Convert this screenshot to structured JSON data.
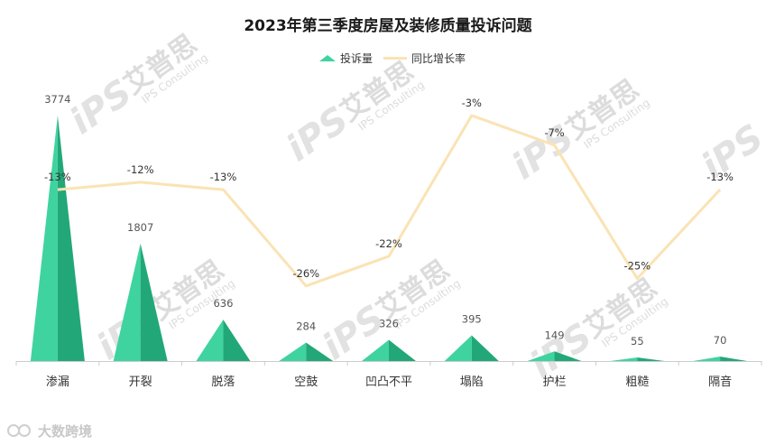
{
  "watermark": {
    "brand_cn": "艾普思",
    "brand_en": "IPS Consulting",
    "mark": "iPS"
  },
  "source_mark": "大数跨境",
  "colors": {
    "bar_light": "#3fd3a0",
    "bar_dark": "#22a878",
    "line": "#fae3b4",
    "axis": "#cccccc"
  },
  "chart_data": {
    "type": "bar",
    "title": "2023年第三季度房屋及装修质量投诉问题",
    "legend_position": "top-center",
    "categories": [
      "渗漏",
      "开裂",
      "脱落",
      "空鼓",
      "凹凸不平",
      "塌陷",
      "护栏",
      "粗糙",
      "隔音"
    ],
    "series": [
      {
        "name": "投诉量",
        "type": "bar",
        "axis": "left",
        "values": [
          3774,
          1807,
          636,
          284,
          326,
          395,
          149,
          55,
          70
        ],
        "labels": [
          "3774",
          "1807",
          "636",
          "284",
          "326",
          "395",
          "149",
          "55",
          "70"
        ]
      },
      {
        "name": "同比增长率",
        "type": "line",
        "axis": "right",
        "values": [
          -13,
          -12,
          -13,
          -26,
          -22,
          -3,
          -7,
          -25,
          -13
        ],
        "labels": [
          "-13%",
          "-12%",
          "-13%",
          "-26%",
          "-22%",
          "-3%",
          "-7%",
          "-25%",
          "-13%"
        ]
      }
    ],
    "ylim_left": [
      0,
      3774
    ],
    "ylim_right": [
      -27,
      -3
    ],
    "grid": false
  }
}
